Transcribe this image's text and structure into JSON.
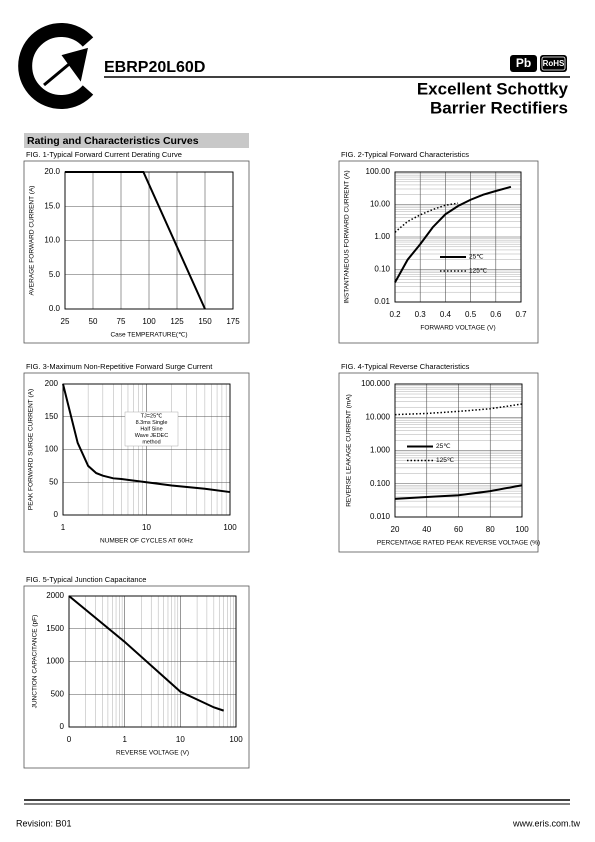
{
  "header": {
    "part_number": "EBRP20L60D",
    "badges": [
      "Pb",
      "RoHS"
    ],
    "subtitle": [
      "Excellent Schottky",
      "Barrier Rectifiers"
    ]
  },
  "section_title": "Rating and Characteristics Curves",
  "chart_data": [
    {
      "type": "line",
      "title": "FIG. 1-Typical Forward Current Derating Curve",
      "xlabel": "Case TEMPERATURE(℃)",
      "ylabel": "AVERAGE FORWARD CURRENT (A)",
      "x": [
        25,
        95,
        150
      ],
      "values": [
        20,
        20,
        0
      ],
      "color": "#000000",
      "xlim": [
        25,
        175
      ],
      "xticks": [
        25,
        50,
        75,
        100,
        125,
        150,
        175
      ],
      "ylim": [
        0,
        20
      ],
      "yticks": [
        {
          "value": 0,
          "label": "0.0"
        },
        {
          "value": 5,
          "label": "5.0"
        },
        {
          "value": 10,
          "label": "10.0"
        },
        {
          "value": 15,
          "label": "15.0"
        },
        {
          "value": 20,
          "label": "20.0"
        }
      ],
      "grid": true
    },
    {
      "type": "line",
      "title": "FIG. 2-Typical Forward Characteristics",
      "xlabel": "FORWARD VOLTAGE (V)",
      "ylabel": "INSTANTANEOUS FORWARD CURRENT (A)",
      "x": [
        0.2,
        0.25,
        0.3,
        0.35,
        0.4,
        0.45,
        0.5,
        0.55,
        0.6,
        0.66
      ],
      "series": [
        {
          "name": "25℃",
          "color": "#000000",
          "dash": "solid",
          "values": [
            0.04,
            0.2,
            0.6,
            2,
            5,
            9,
            14,
            20,
            26,
            35
          ]
        },
        {
          "name": "125℃",
          "color": "#000000",
          "dash": "dotted",
          "values": [
            1.4,
            3,
            4.8,
            7,
            9.5,
            11,
            null,
            null,
            null,
            null
          ]
        }
      ],
      "xlim": [
        0.2,
        0.7
      ],
      "xticks": [
        0.2,
        0.3,
        0.4,
        0.5,
        0.6,
        0.7
      ],
      "ylim": [
        0.01,
        100
      ],
      "yscale": "log",
      "yticks": [
        0.01,
        {
          "value": 0.1,
          "label": "0.10"
        },
        {
          "value": 1,
          "label": "1.00"
        },
        {
          "value": 10,
          "label": "10.00"
        },
        {
          "value": 100,
          "label": "100.00"
        }
      ],
      "grid": true,
      "legend": "lower center"
    },
    {
      "type": "line",
      "title": "FIG. 3-Maximum Non-Repetitive Forward Surge Current",
      "xlabel": "NUMBER OF CYCLES AT 60Hz",
      "ylabel": "PEAK FORWARD SURGE CURRENT (A)",
      "annotation": [
        "TJ=25℃",
        "8.3ms Single",
        "Half Sine",
        "Wave JEDEC",
        "method"
      ],
      "x": [
        1,
        1.5,
        2,
        2.5,
        3,
        4,
        5,
        10,
        20,
        50,
        100
      ],
      "values": [
        200,
        110,
        75,
        64,
        60,
        56,
        55,
        50,
        45,
        40,
        35
      ],
      "color": "#000000",
      "xlim": [
        1,
        100
      ],
      "xscale": "log",
      "xticks": [
        1,
        10,
        100
      ],
      "ylim": [
        0,
        200
      ],
      "yticks": [
        0,
        50,
        100,
        150,
        200
      ],
      "grid": true
    },
    {
      "type": "line",
      "title": "FIG. 4-Typical Reverse Characteristics",
      "xlabel": "PERCENTAGE RATED PEAK REVERSE VOLTAGE (%)",
      "ylabel": "REVERSE LEAKAGE CURRENT (mA)",
      "x": [
        20,
        40,
        60,
        80,
        100
      ],
      "series": [
        {
          "name": "25℃",
          "color": "#000000",
          "dash": "solid",
          "values": [
            0.035,
            0.04,
            0.045,
            0.06,
            0.09
          ]
        },
        {
          "name": "125℃",
          "color": "#000000",
          "dash": "dotted",
          "values": [
            12,
            13,
            15,
            18,
            25
          ]
        }
      ],
      "xlim": [
        20,
        100
      ],
      "xticks": [
        20,
        40,
        60,
        80,
        100
      ],
      "ylim": [
        0.01,
        100
      ],
      "yscale": "log",
      "yticks": [
        {
          "value": 0.01,
          "label": "0.010"
        },
        {
          "value": 0.1,
          "label": "0.100"
        },
        {
          "value": 1,
          "label": "1.000"
        },
        {
          "value": 10,
          "label": "10.000"
        },
        {
          "value": 100,
          "label": "100.000"
        }
      ],
      "grid": true,
      "legend": "center left"
    },
    {
      "type": "line",
      "title": "FIG. 5-Typical Junction Capacitance",
      "xlabel": "REVERSE VOLTAGE (V)",
      "ylabel": "JUNCTION CAPACITANCE (pF)",
      "x": [
        0.1,
        1,
        10,
        20,
        40,
        60
      ],
      "values": [
        2000,
        1300,
        540,
        420,
        300,
        250
      ],
      "color": "#000000",
      "xlim": [
        0.1,
        100
      ],
      "xscale": "log",
      "xticks": [
        {
          "value": 0.1,
          "label": "0"
        },
        1,
        10,
        100
      ],
      "ylim": [
        0,
        2000
      ],
      "yticks": [
        0,
        500,
        1000,
        1500,
        2000
      ],
      "grid": true
    }
  ],
  "footer": {
    "revision": "Revision: B01",
    "website": "www.eris.com.tw"
  }
}
